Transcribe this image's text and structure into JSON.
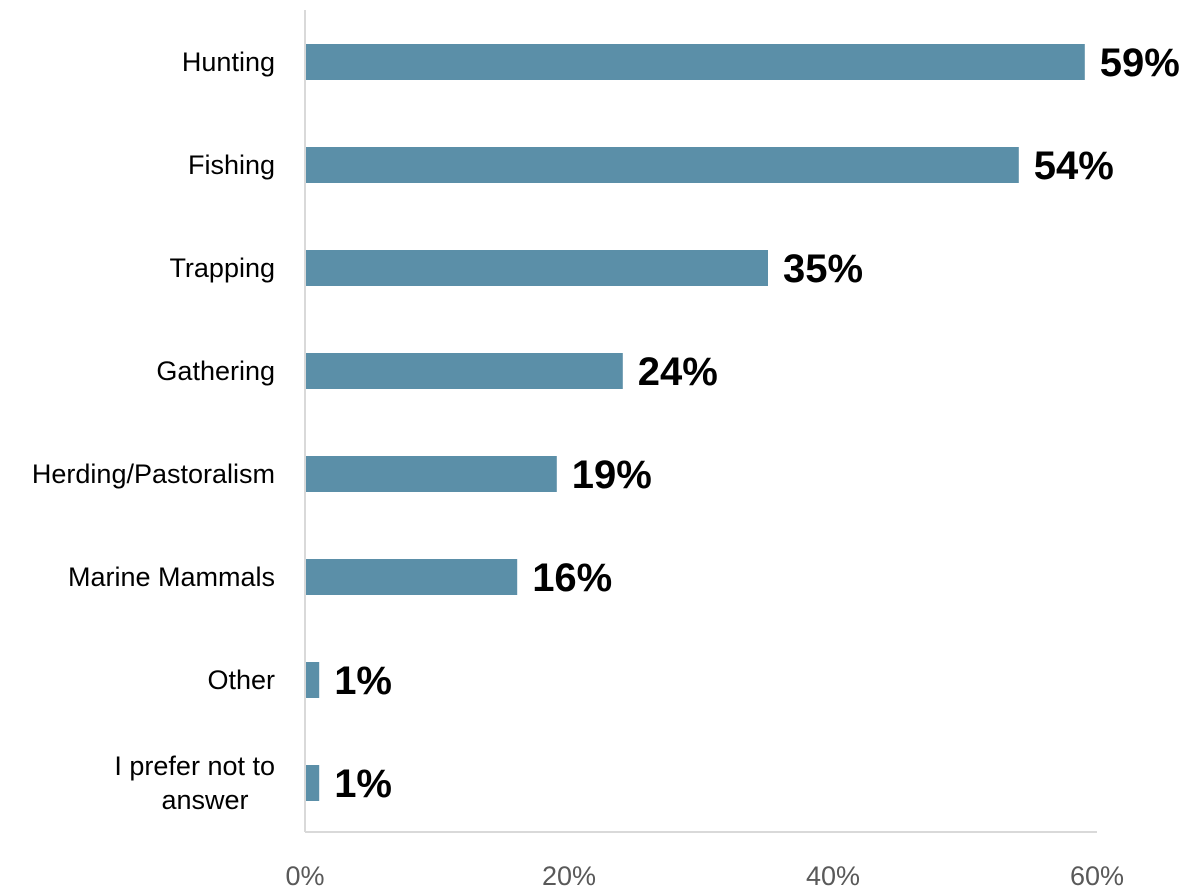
{
  "chart_data": {
    "type": "bar",
    "orientation": "horizontal",
    "categories": [
      [
        "Hunting"
      ],
      [
        "Fishing"
      ],
      [
        "Trapping"
      ],
      [
        "Gathering"
      ],
      [
        "Herding/Pastoralism"
      ],
      [
        "Marine Mammals"
      ],
      [
        "Other"
      ],
      [
        "I prefer not to",
        "answer"
      ]
    ],
    "values": [
      59,
      54,
      35,
      24,
      19,
      16,
      1,
      1
    ],
    "data_labels": [
      "59%",
      "54%",
      "35%",
      "24%",
      "19%",
      "16%",
      "1%",
      "1%"
    ],
    "x_ticks": [
      "0%",
      "20%",
      "40%",
      "60%"
    ],
    "x_tick_values": [
      0,
      20,
      40,
      60
    ],
    "xlim": [
      0,
      60
    ],
    "title": "",
    "xlabel": "",
    "ylabel": "",
    "grid": false,
    "legend": "none",
    "bar_color": "#5b8fa8"
  }
}
